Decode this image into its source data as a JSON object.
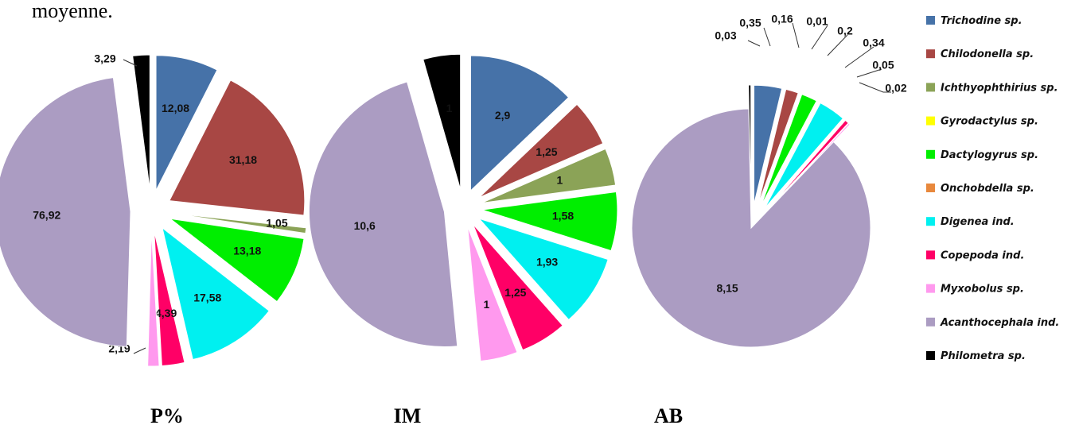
{
  "header_fragment": "moyenne.",
  "legend": [
    {
      "name": "Trichodine sp.",
      "color": "#4672a8"
    },
    {
      "name": "Chilodonella sp.",
      "color": "#a84744"
    },
    {
      "name": "Ichthyophthirius sp.",
      "color": "#8ba357"
    },
    {
      "name": "Gyrodactylus sp.",
      "color": "#ffff00"
    },
    {
      "name": "Dactylogyrus sp.",
      "color": "#00ee00"
    },
    {
      "name": "Onchobdella sp.",
      "color": "#e8883c"
    },
    {
      "name": "Digenea ind.",
      "color": "#00f0f0"
    },
    {
      "name": "Copepoda ind.",
      "color": "#ff0066"
    },
    {
      "name": "Myxobolus sp.",
      "color": "#ff99ee"
    },
    {
      "name": "Acanthocephala ind.",
      "color": "#ab9cc2"
    },
    {
      "name": "Philometra sp.",
      "color": "#000000"
    }
  ],
  "chart_data": [
    {
      "type": "pie",
      "title": "P%",
      "slices": [
        {
          "category": "Trichodine sp.",
          "value": 12.08,
          "label": "12,08"
        },
        {
          "category": "Chilodonella sp.",
          "value": 31.18,
          "label": "31,18"
        },
        {
          "category": "Ichthyophthirius sp.",
          "value": 1.05,
          "label": "1,05"
        },
        {
          "category": "Dactylogyrus sp.",
          "value": 13.18,
          "label": "13,18"
        },
        {
          "category": "Digenea ind.",
          "value": 17.58,
          "label": "17,58"
        },
        {
          "category": "Copepoda ind.",
          "value": 4.39,
          "label": "4,39"
        },
        {
          "category": "Myxobolus sp.",
          "value": 2.19,
          "label": "2,19"
        },
        {
          "category": "Acanthocephala ind.",
          "value": 76.92,
          "label": "76,92"
        },
        {
          "category": "Philometra sp.",
          "value": 3.29,
          "label": "3,29"
        }
      ]
    },
    {
      "type": "pie",
      "title": "IM",
      "slices": [
        {
          "category": "Trichodine sp.",
          "value": 2.9,
          "label": "2,9"
        },
        {
          "category": "Chilodonella sp.",
          "value": 1.25,
          "label": "1,25"
        },
        {
          "category": "Ichthyophthirius sp.",
          "value": 1,
          "label": "1"
        },
        {
          "category": "Dactylogyrus sp.",
          "value": 1.58,
          "label": "1,58"
        },
        {
          "category": "Digenea ind.",
          "value": 1.93,
          "label": "1,93"
        },
        {
          "category": "Copepoda ind.",
          "value": 1.25,
          "label": "1,25"
        },
        {
          "category": "Myxobolus sp.",
          "value": 1,
          "label": "1"
        },
        {
          "category": "Acanthocephala ind.",
          "value": 10.6,
          "label": "10,6"
        },
        {
          "category": "Philometra sp.",
          "value": 1,
          "label": "1",
          "label_color": "#e00000"
        }
      ]
    },
    {
      "type": "pie",
      "title": "AB",
      "slices": [
        {
          "category": "Trichodine sp.",
          "value": 0.35,
          "label": "0,35"
        },
        {
          "category": "Chilodonella sp.",
          "value": 0.16,
          "label": "0,16"
        },
        {
          "category": "Ichthyophthirius sp.",
          "value": 0.01,
          "label": "0,01"
        },
        {
          "category": "Dactylogyrus sp.",
          "value": 0.2,
          "label": "0,2"
        },
        {
          "category": "Digenea ind.",
          "value": 0.34,
          "label": "0,34"
        },
        {
          "category": "Copepoda ind.",
          "value": 0.05,
          "label": "0,05"
        },
        {
          "category": "Myxobolus sp.",
          "value": 0.02,
          "label": "0,02"
        },
        {
          "category": "Acanthocephala ind.",
          "value": 8.15,
          "label": "8,15"
        },
        {
          "category": "Philometra sp.",
          "value": 0.03,
          "label": "0,03"
        }
      ]
    }
  ]
}
